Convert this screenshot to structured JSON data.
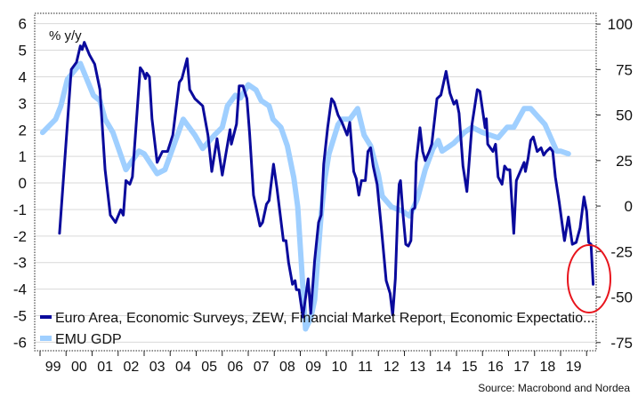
{
  "chart_data": {
    "type": "line",
    "unit_label": "% y/y",
    "source": "Source: Macrobond and Nordea",
    "left_axis": {
      "ticks": [
        6,
        5,
        4,
        3,
        2,
        1,
        0,
        -1,
        -2,
        -3,
        -4,
        -5,
        -6
      ],
      "ylim": [
        -6.32,
        6.39
      ]
    },
    "right_axis": {
      "ticks": [
        100,
        75,
        50,
        25,
        0,
        -25,
        -50,
        -75
      ],
      "ylim": [
        -79.5,
        105.9
      ]
    },
    "x_axis": {
      "labels": [
        "99",
        "00",
        "01",
        "02",
        "03",
        "04",
        "05",
        "06",
        "07",
        "08",
        "09",
        "10",
        "11",
        "12",
        "13",
        "14",
        "15",
        "16",
        "17",
        "18",
        "19"
      ],
      "start_years": [
        1999,
        2000,
        2001,
        2002,
        2003,
        2004,
        2005,
        2006,
        2007,
        2008,
        2009,
        2010,
        2011,
        2012,
        2013,
        2014,
        2015,
        2016,
        2017,
        2018,
        2019
      ],
      "xlim": [
        1999,
        2020.4
      ]
    },
    "grid": true,
    "legend_placement": "bottom-left",
    "annotation": "red-circle-around-latest-zew-reading",
    "series": [
      {
        "name": "Euro Area, Economic Surveys, ZEW, Financial Market Report, Economic Expectatio...",
        "axis": "right",
        "color": "#0a0a9c",
        "points": [
          [
            1999.75,
            -15
          ],
          [
            2000.05,
            45
          ],
          [
            2000.2,
            75
          ],
          [
            2000.4,
            79
          ],
          [
            2000.55,
            88
          ],
          [
            2000.62,
            86
          ],
          [
            2000.7,
            90
          ],
          [
            2000.9,
            83
          ],
          [
            2001.1,
            78
          ],
          [
            2001.3,
            64
          ],
          [
            2001.5,
            20
          ],
          [
            2001.7,
            -5
          ],
          [
            2001.9,
            -9
          ],
          [
            2002.1,
            -2
          ],
          [
            2002.2,
            -5
          ],
          [
            2002.3,
            14
          ],
          [
            2002.45,
            12
          ],
          [
            2002.55,
            16
          ],
          [
            2002.85,
            76
          ],
          [
            2002.95,
            74
          ],
          [
            2003.05,
            70
          ],
          [
            2003.1,
            73
          ],
          [
            2003.2,
            71
          ],
          [
            2003.3,
            48
          ],
          [
            2003.5,
            24
          ],
          [
            2003.7,
            30
          ],
          [
            2003.9,
            30
          ],
          [
            2004.1,
            39
          ],
          [
            2004.35,
            68
          ],
          [
            2004.45,
            70
          ],
          [
            2004.65,
            81
          ],
          [
            2004.75,
            64
          ],
          [
            2004.95,
            59
          ],
          [
            2005.25,
            55
          ],
          [
            2005.45,
            39
          ],
          [
            2005.6,
            19
          ],
          [
            2005.8,
            37
          ],
          [
            2006.0,
            17
          ],
          [
            2006.3,
            42
          ],
          [
            2006.35,
            34
          ],
          [
            2006.55,
            45
          ],
          [
            2006.65,
            66
          ],
          [
            2006.8,
            66
          ],
          [
            2006.95,
            59
          ],
          [
            2007.05,
            40
          ],
          [
            2007.2,
            6
          ],
          [
            2007.45,
            -11
          ],
          [
            2007.55,
            -9
          ],
          [
            2007.7,
            1
          ],
          [
            2007.8,
            3
          ],
          [
            2007.97,
            23
          ],
          [
            2008.1,
            10
          ],
          [
            2008.35,
            -19
          ],
          [
            2008.45,
            -19
          ],
          [
            2008.55,
            -31
          ],
          [
            2008.7,
            -43
          ],
          [
            2008.8,
            -41
          ],
          [
            2008.85,
            -46
          ],
          [
            2008.95,
            -46
          ],
          [
            2009.1,
            -61
          ],
          [
            2009.3,
            -40
          ],
          [
            2009.4,
            -59
          ],
          [
            2009.55,
            -30
          ],
          [
            2009.7,
            -9
          ],
          [
            2009.8,
            -5
          ],
          [
            2009.9,
            23
          ],
          [
            2010.05,
            43
          ],
          [
            2010.2,
            59
          ],
          [
            2010.3,
            57
          ],
          [
            2010.45,
            50
          ],
          [
            2010.6,
            46
          ],
          [
            2010.8,
            39
          ],
          [
            2010.9,
            46
          ],
          [
            2011.05,
            19
          ],
          [
            2011.15,
            15
          ],
          [
            2011.25,
            6
          ],
          [
            2011.35,
            14
          ],
          [
            2011.5,
            14
          ],
          [
            2011.6,
            30
          ],
          [
            2011.7,
            32
          ],
          [
            2011.8,
            22
          ],
          [
            2011.95,
            12
          ],
          [
            2012.1,
            -10
          ],
          [
            2012.3,
            -41
          ],
          [
            2012.45,
            -48
          ],
          [
            2012.55,
            -60
          ],
          [
            2012.65,
            -40
          ],
          [
            2012.75,
            0
          ],
          [
            2012.8,
            12
          ],
          [
            2012.85,
            14
          ],
          [
            2012.95,
            -5
          ],
          [
            2013.05,
            -21
          ],
          [
            2013.15,
            -22
          ],
          [
            2013.25,
            -19
          ],
          [
            2013.3,
            -2
          ],
          [
            2013.4,
            -1
          ],
          [
            2013.45,
            24
          ],
          [
            2013.6,
            43
          ],
          [
            2013.7,
            30
          ],
          [
            2013.8,
            25
          ],
          [
            2013.95,
            30
          ],
          [
            2014.05,
            34
          ],
          [
            2014.25,
            59
          ],
          [
            2014.4,
            61
          ],
          [
            2014.6,
            74
          ],
          [
            2014.75,
            62
          ],
          [
            2014.9,
            56
          ],
          [
            2015.0,
            58
          ],
          [
            2015.1,
            51
          ],
          [
            2015.25,
            22
          ],
          [
            2015.4,
            8
          ],
          [
            2015.6,
            45
          ],
          [
            2015.8,
            64
          ],
          [
            2015.9,
            63
          ],
          [
            2016.1,
            43
          ],
          [
            2016.15,
            48
          ],
          [
            2016.2,
            34
          ],
          [
            2016.4,
            30
          ],
          [
            2016.5,
            34
          ],
          [
            2016.6,
            16
          ],
          [
            2016.75,
            12
          ],
          [
            2016.85,
            22
          ],
          [
            2016.95,
            20
          ],
          [
            2017.05,
            20
          ],
          [
            2017.2,
            -15
          ],
          [
            2017.3,
            14
          ],
          [
            2017.45,
            19
          ],
          [
            2017.6,
            24
          ],
          [
            2017.65,
            19
          ],
          [
            2017.75,
            26
          ],
          [
            2017.85,
            36
          ],
          [
            2017.95,
            38
          ],
          [
            2018.1,
            30
          ],
          [
            2018.25,
            32
          ],
          [
            2018.35,
            28
          ],
          [
            2018.45,
            30
          ],
          [
            2018.6,
            32
          ],
          [
            2018.7,
            30
          ],
          [
            2018.8,
            16
          ],
          [
            2018.95,
            2
          ],
          [
            2019.1,
            -14
          ],
          [
            2019.15,
            -19
          ],
          [
            2019.3,
            -6
          ],
          [
            2019.45,
            -21
          ],
          [
            2019.6,
            -20
          ],
          [
            2019.75,
            -12
          ],
          [
            2019.9,
            5
          ],
          [
            2020.0,
            -3
          ],
          [
            2020.08,
            -20
          ],
          [
            2020.17,
            -21
          ],
          [
            2020.25,
            -43
          ]
        ]
      },
      {
        "name": "EMU GDP",
        "axis": "left",
        "color": "#9fcfff",
        "points": [
          [
            1999.1,
            1.9
          ],
          [
            1999.6,
            2.4
          ],
          [
            1999.8,
            2.9
          ],
          [
            2000.05,
            3.9
          ],
          [
            2000.55,
            4.5
          ],
          [
            2001.05,
            3.3
          ],
          [
            2001.3,
            3.1
          ],
          [
            2001.5,
            2.4
          ],
          [
            2001.8,
            1.9
          ],
          [
            2002.3,
            0.5
          ],
          [
            2002.8,
            1.2
          ],
          [
            2003.0,
            1.1
          ],
          [
            2003.5,
            0.35
          ],
          [
            2003.8,
            0.5
          ],
          [
            2004.5,
            2.4
          ],
          [
            2004.95,
            1.8
          ],
          [
            2005.25,
            1.3
          ],
          [
            2005.7,
            1.8
          ],
          [
            2006.0,
            2.1
          ],
          [
            2006.2,
            2.9
          ],
          [
            2006.5,
            3.3
          ],
          [
            2006.7,
            3.2
          ],
          [
            2007.0,
            3.7
          ],
          [
            2007.3,
            3.5
          ],
          [
            2007.5,
            3.1
          ],
          [
            2007.8,
            2.9
          ],
          [
            2007.95,
            2.4
          ],
          [
            2008.25,
            2.1
          ],
          [
            2008.5,
            1.4
          ],
          [
            2008.75,
            0.2
          ],
          [
            2008.9,
            -0.9
          ],
          [
            2009.2,
            -5.5
          ],
          [
            2009.4,
            -5.1
          ],
          [
            2009.55,
            -4.4
          ],
          [
            2009.8,
            -1.2
          ],
          [
            2009.95,
            0.2
          ],
          [
            2010.1,
            1.1
          ],
          [
            2010.45,
            2.2
          ],
          [
            2010.6,
            2.4
          ],
          [
            2010.9,
            2.4
          ],
          [
            2011.2,
            2.8
          ],
          [
            2011.45,
            1.8
          ],
          [
            2011.7,
            1.4
          ],
          [
            2012.0,
            0.3
          ],
          [
            2012.15,
            -0.5
          ],
          [
            2012.5,
            -0.9
          ],
          [
            2012.9,
            -1.05
          ],
          [
            2013.2,
            -1.25
          ],
          [
            2013.5,
            -0.6
          ],
          [
            2013.8,
            0.5
          ],
          [
            2014.1,
            1.3
          ],
          [
            2014.3,
            1.6
          ],
          [
            2014.45,
            1.2
          ],
          [
            2014.9,
            1.5
          ],
          [
            2015.3,
            1.9
          ],
          [
            2015.6,
            2.1
          ],
          [
            2016.0,
            1.9
          ],
          [
            2016.6,
            1.7
          ],
          [
            2016.95,
            2.1
          ],
          [
            2017.2,
            2.1
          ],
          [
            2017.6,
            2.8
          ],
          [
            2017.85,
            2.8
          ],
          [
            2018.4,
            2.2
          ],
          [
            2018.85,
            1.2
          ],
          [
            2019.0,
            1.2
          ],
          [
            2019.3,
            1.1
          ]
        ]
      }
    ]
  }
}
